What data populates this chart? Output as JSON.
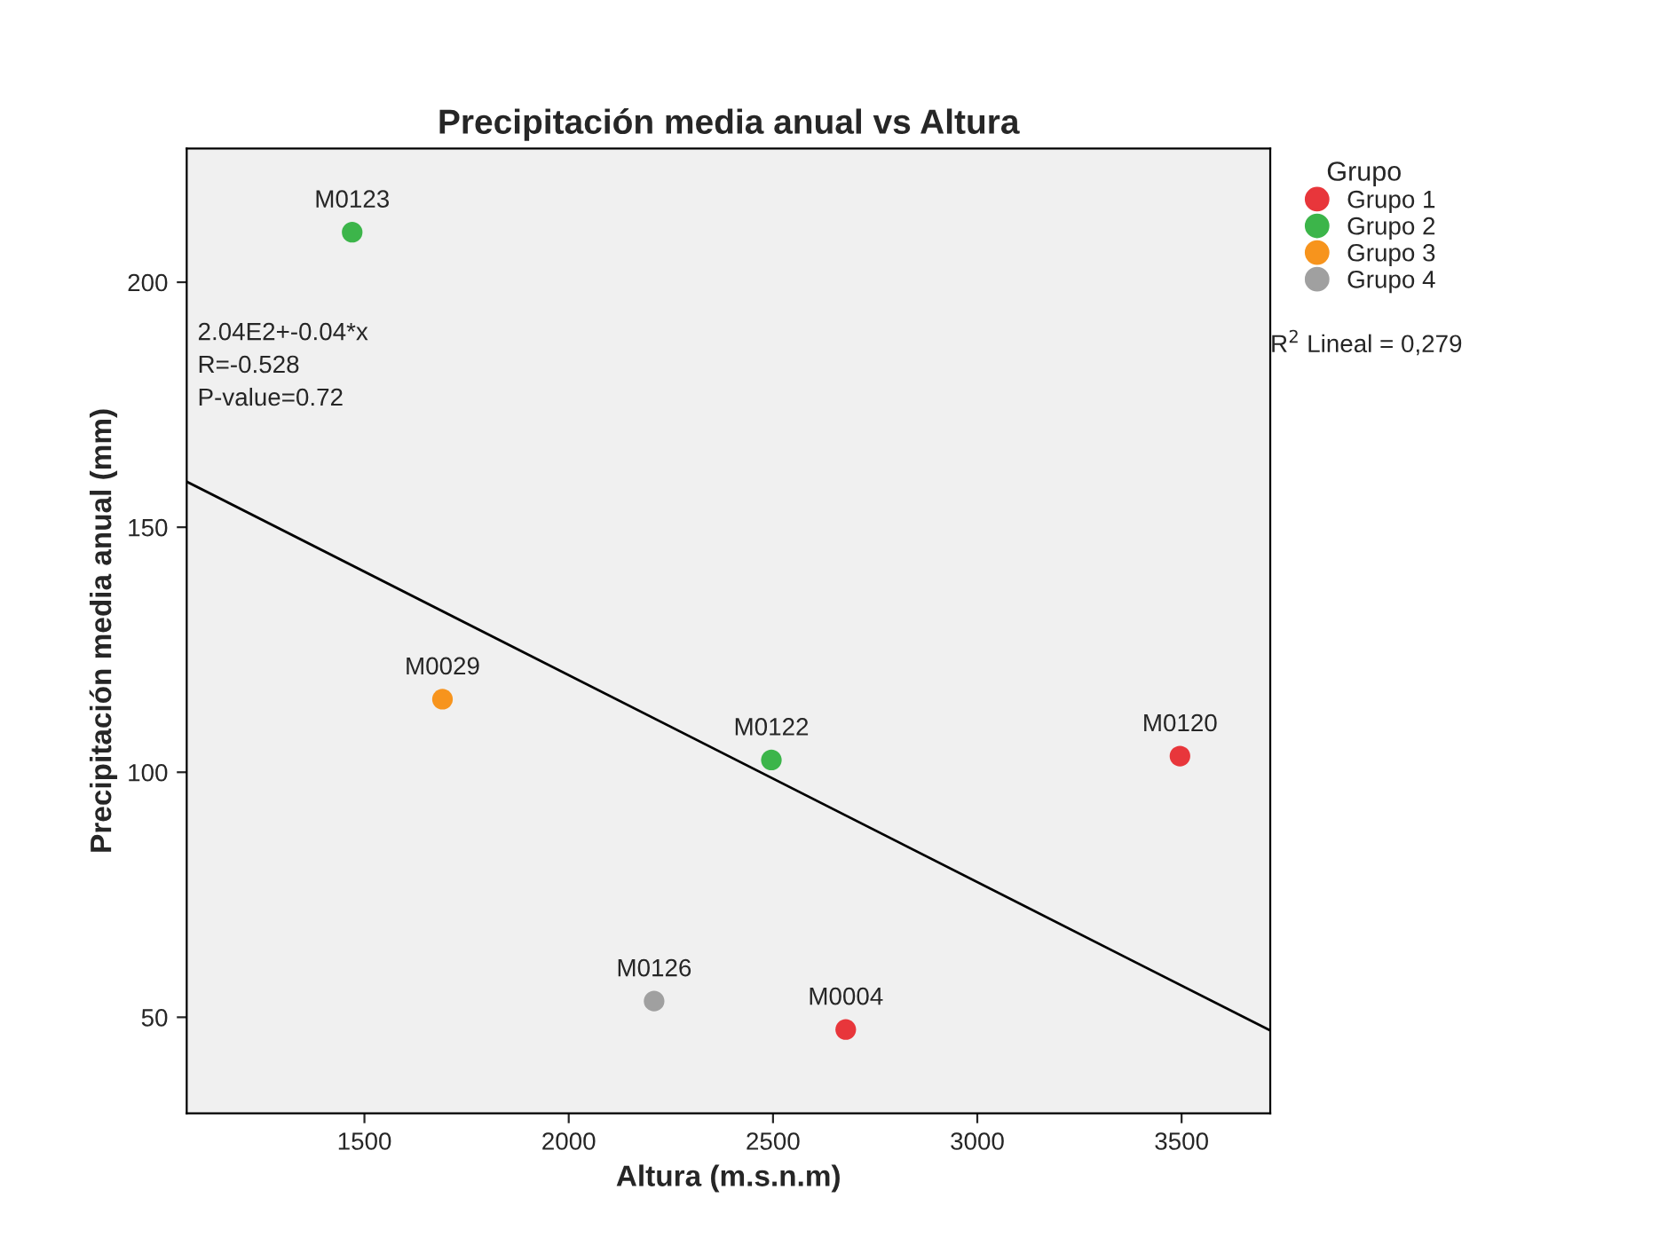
{
  "chart_data": {
    "type": "scatter",
    "title": "Precipitación media anual vs Altura",
    "xlabel": "Altura (m.s.n.m)",
    "ylabel": "Precipitación media anual (mm)",
    "legend_title": "Grupo",
    "series": [
      {
        "name": "Grupo 1",
        "color": "#e8363b",
        "x": [
          3496,
          2678
        ],
        "values": [
          103.3,
          47.5
        ]
      },
      {
        "name": "Grupo 2",
        "color": "#3cb54a",
        "x": [
          1470,
          2496
        ],
        "values": [
          210.2,
          102.5
        ]
      },
      {
        "name": "Grupo 3",
        "color": "#f7941d",
        "x": [
          1691
        ],
        "values": [
          114.9
        ]
      },
      {
        "name": "Grupo 4",
        "color": "#a0a0a0",
        "x": [
          2209
        ],
        "values": [
          53.3
        ]
      },
      {
        "type": "line",
        "color": "#000000",
        "x": [
          1065,
          3717
        ],
        "values": [
          159.3,
          47.3
        ],
        "marker": "none"
      }
    ],
    "annotations": [
      {
        "text": "M0123",
        "x": 1470,
        "y": 210.2
      },
      {
        "text": "M0029",
        "x": 1691,
        "y": 114.9
      },
      {
        "text": "M0122",
        "x": 2496,
        "y": 102.5
      },
      {
        "text": "M0120",
        "x": 3496,
        "y": 103.3
      },
      {
        "text": "M0126",
        "x": 2209,
        "y": 53.3
      },
      {
        "text": "M0004",
        "x": 2678,
        "y": 47.5
      },
      "2.04E2+-0.04*x",
      "R=-0.528",
      "P-value=0.72",
      "R$^{2}$ Lineal = 0,279"
    ],
    "xlim": [
      1065,
      3717
    ],
    "ylim": [
      30.4,
      227.3
    ],
    "xticks": [
      1500,
      2000,
      2500,
      3000,
      3500
    ],
    "yticks": [
      50,
      100,
      150,
      200
    ],
    "grid": false,
    "legend": "right",
    "marker": "circle"
  }
}
